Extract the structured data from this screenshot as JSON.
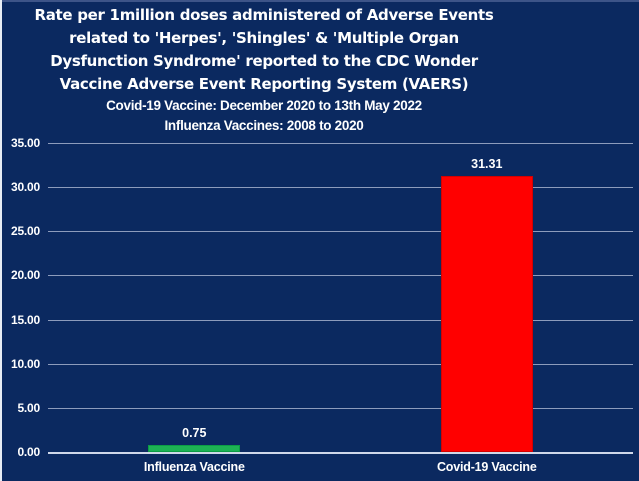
{
  "title": {
    "lines": [
      "Rate per 1million doses administered of Adverse Events",
      "related to 'Herpes', 'Shingles' & 'Multiple Organ",
      "Dysfunction Syndrome' reported to the CDC Wonder",
      "Vaccine Adverse Event Reporting System  (VAERS)"
    ],
    "subtitle_lines": [
      "Covid-19 Vaccine: December 2020 to 13th May 2022",
      "Influenza Vaccines: 2008 to 2020"
    ]
  },
  "chart_data": {
    "type": "bar",
    "categories": [
      "Influenza Vaccine",
      "Covid-19 Vaccine"
    ],
    "values": [
      0.75,
      31.31
    ],
    "data_labels": [
      "0.75",
      "31.31"
    ],
    "bar_colors": [
      "#1db254",
      "#ff0000"
    ],
    "bar_border_colors": [
      "#0c9c45",
      "#d40000"
    ],
    "ylim": [
      0,
      35
    ],
    "y_tick_step": 5,
    "y_tick_labels": [
      "0.00",
      "5.00",
      "10.00",
      "15.00",
      "20.00",
      "25.00",
      "30.00",
      "35.00"
    ],
    "grid": true,
    "legend": "none",
    "xlabel": "",
    "ylabel": "",
    "background_color": "#0b2960",
    "gridline_color": "#8d9cbc",
    "axis_line_color": "#cfd8ea",
    "text_color": "#ffffff"
  }
}
